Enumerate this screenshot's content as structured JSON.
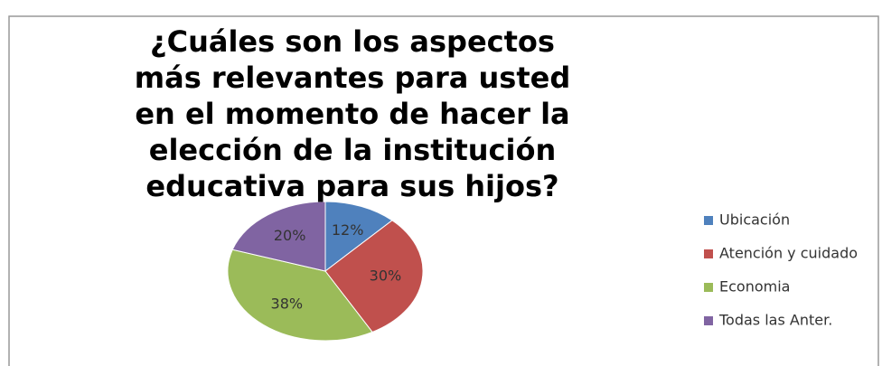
{
  "chart_data": {
    "type": "pie",
    "title": "¿Cuáles son los aspectos más relevantes para usted en el momento de hacer la elección de la institución educativa para sus hijos?",
    "categories": [
      "Ubicación",
      "Atención y cuidado",
      "Economia",
      "Todas las Anter."
    ],
    "values": [
      12,
      30,
      38,
      20
    ],
    "value_labels": [
      "12%",
      "30%",
      "38%",
      "20%"
    ],
    "colors": [
      "#4f81bd",
      "#c0504d",
      "#9bbb59",
      "#8064a2"
    ],
    "legend": "right"
  }
}
